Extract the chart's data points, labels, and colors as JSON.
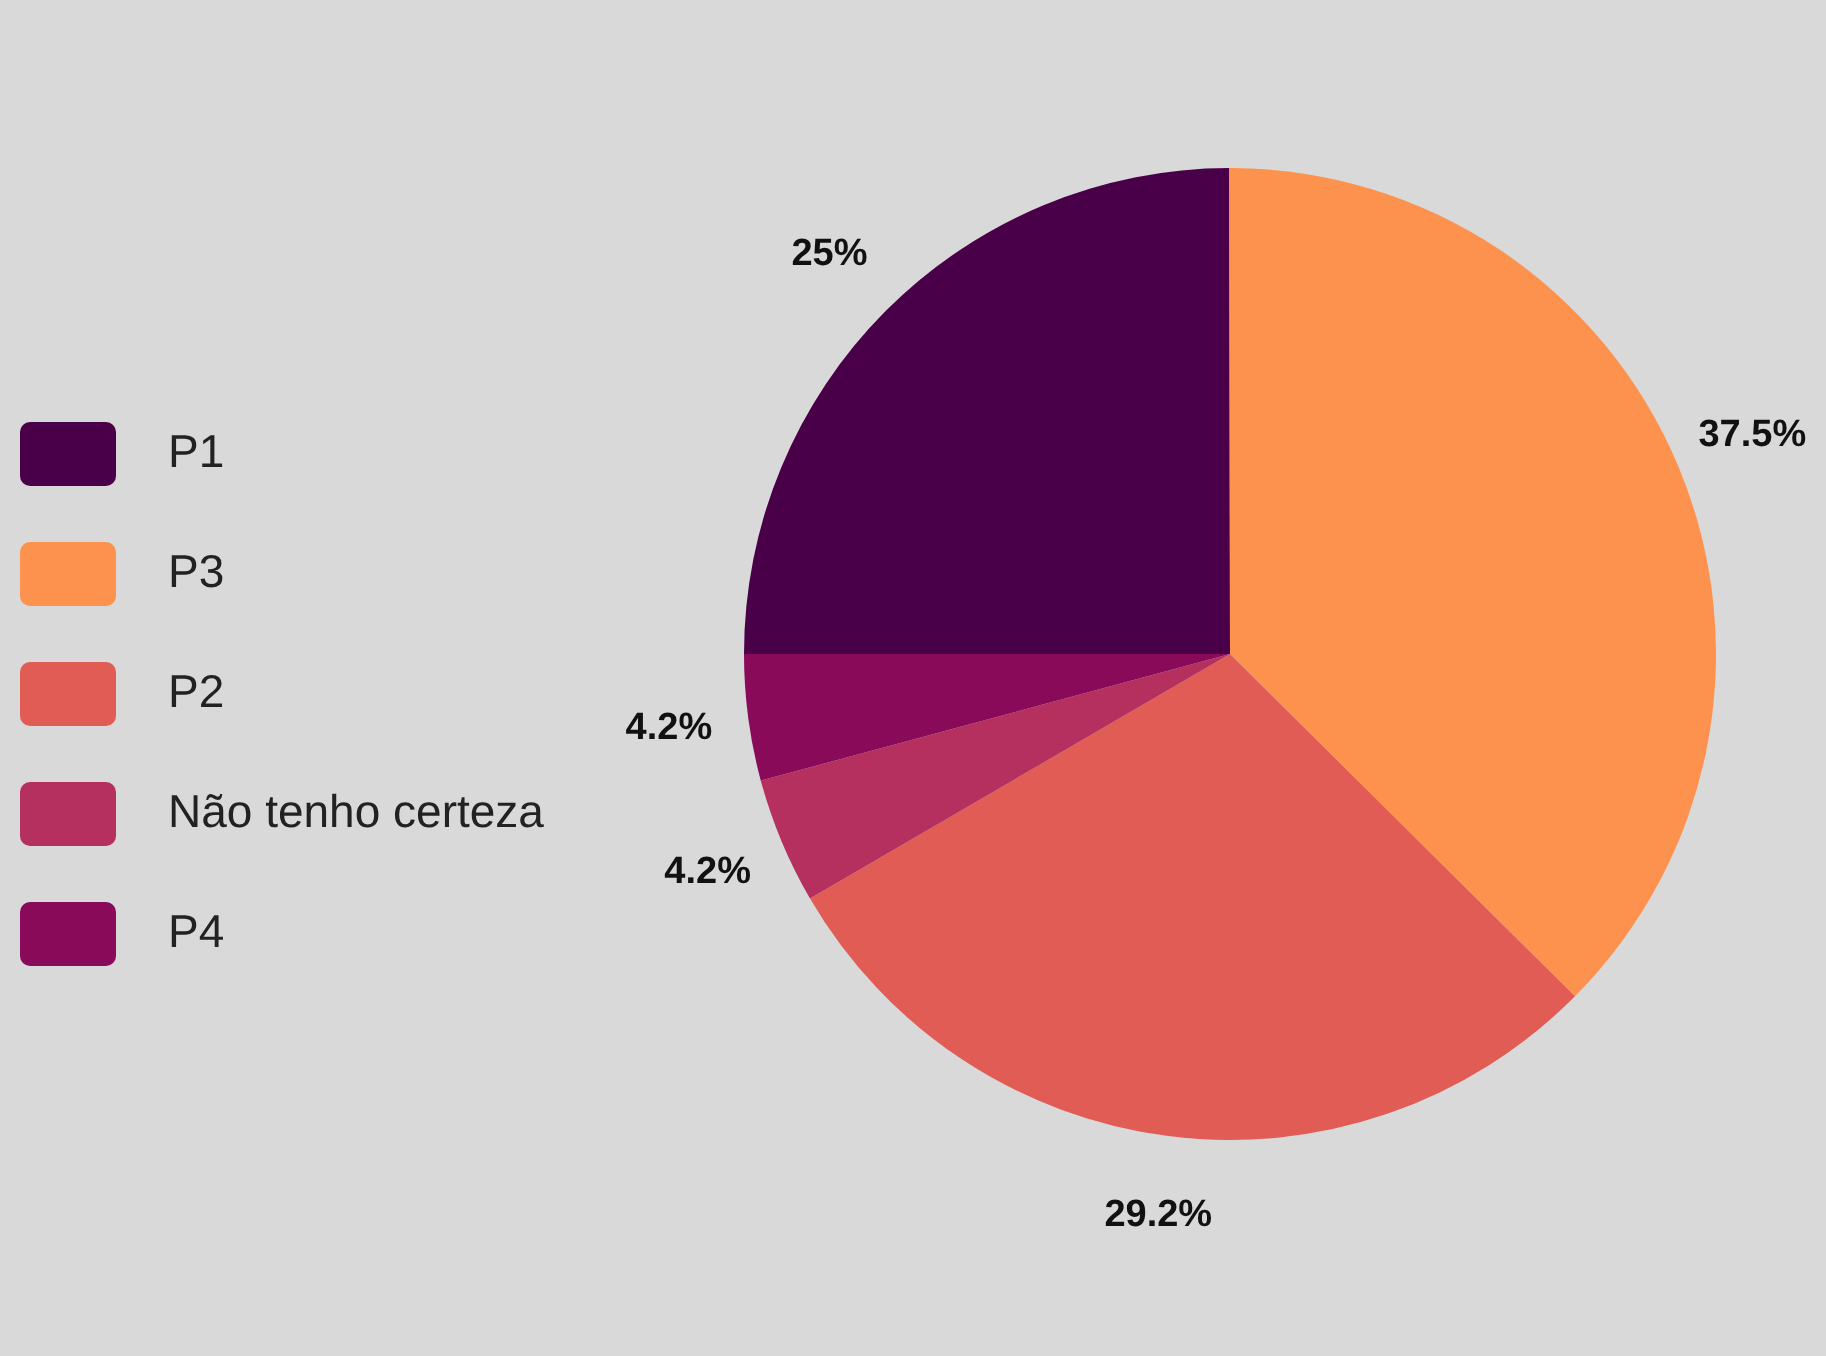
{
  "chart_data": {
    "type": "pie",
    "categories": [
      "P1",
      "P3",
      "P2",
      "Não tenho certeza",
      "P4"
    ],
    "values": [
      25,
      37.5,
      29.2,
      4.2,
      4.2
    ],
    "value_labels": [
      "25%",
      "37.5%",
      "29.2%",
      "4.2%",
      "4.2%"
    ],
    "colors": [
      "#4a0048",
      "#fd914e",
      "#e05c55",
      "#b5305e",
      "#8a0a5a"
    ],
    "legend": "left"
  }
}
